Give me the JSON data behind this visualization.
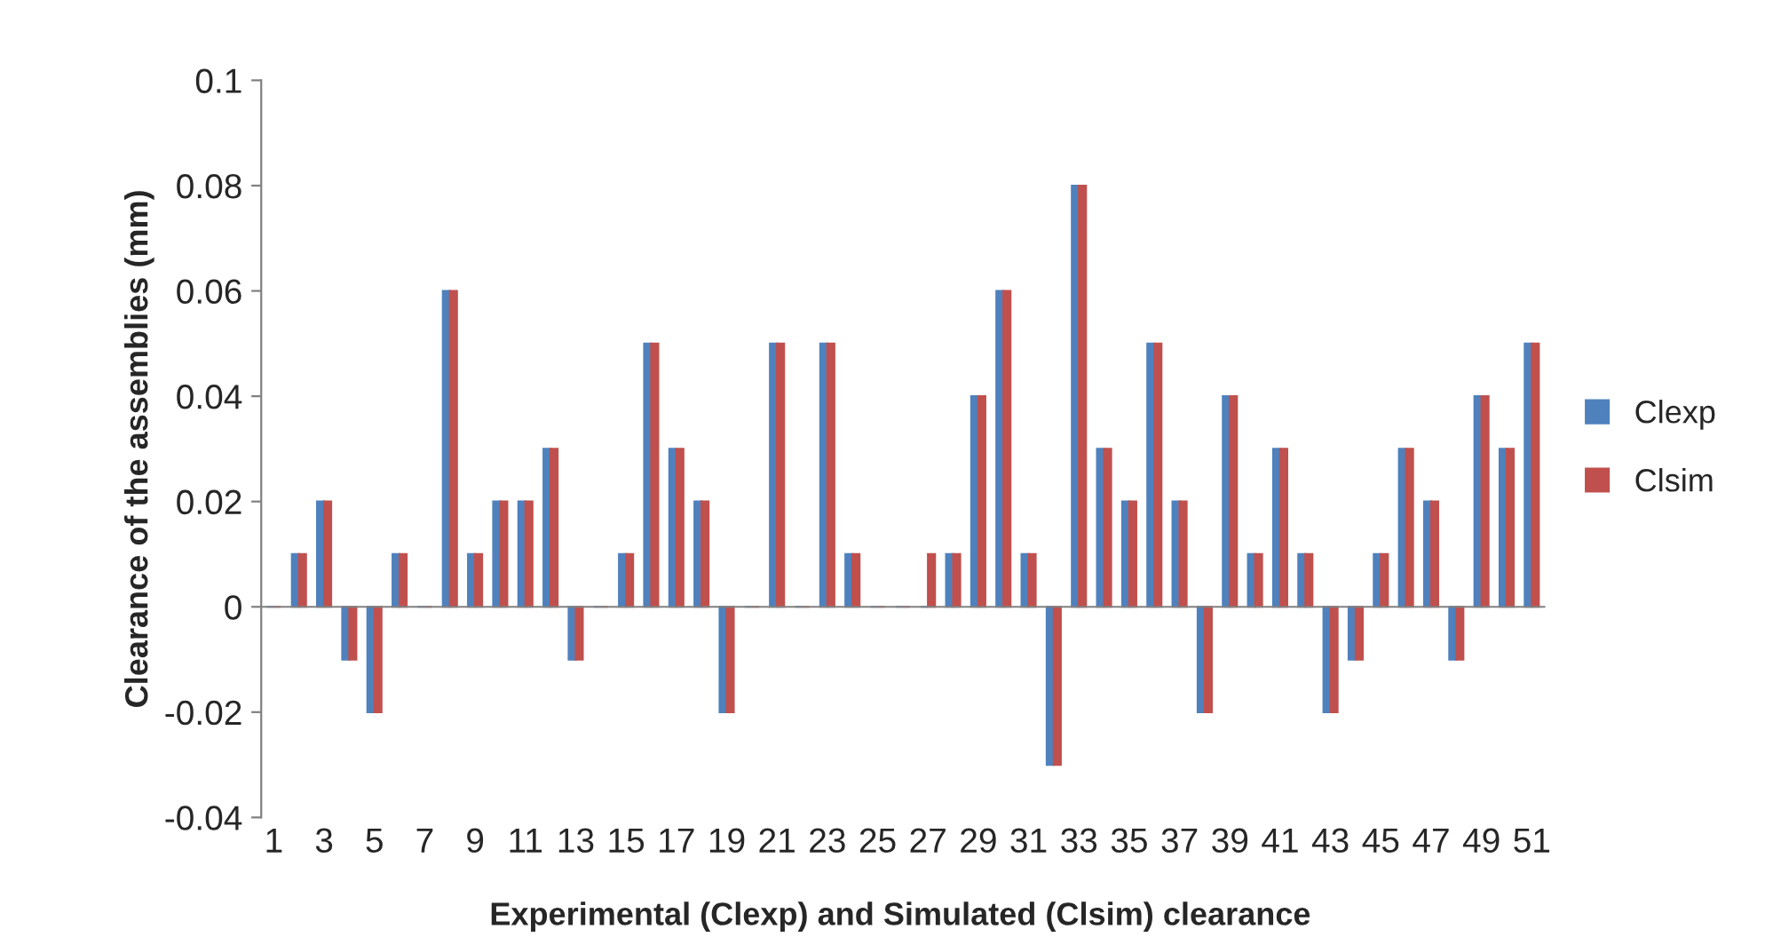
{
  "chart_data": {
    "type": "bar",
    "xlabel": "Experimental (Clexp) and Simulated (Clsim) clearance",
    "ylabel": "Clearance of the assemblies (mm)",
    "categories": [
      "1",
      null,
      "3",
      null,
      "5",
      null,
      "7",
      null,
      "9",
      null,
      "11",
      null,
      "13",
      null,
      "15",
      null,
      "17",
      null,
      "19",
      null,
      "21",
      null,
      "23",
      null,
      "25",
      null,
      "27",
      null,
      "29",
      null,
      "31",
      null,
      "33",
      null,
      "35",
      null,
      "37",
      null,
      "39",
      null,
      "41",
      null,
      "43",
      null,
      "45",
      null,
      "47",
      null,
      "49",
      null,
      "51"
    ],
    "series": [
      {
        "name": "Clexp",
        "color": "#4f81bd",
        "values": [
          0,
          0.01,
          0.02,
          -0.01,
          -0.02,
          0.01,
          0,
          0.06,
          0.01,
          0.02,
          0.02,
          0.03,
          -0.01,
          0,
          0.01,
          0.05,
          0.03,
          0.02,
          -0.02,
          0,
          0.05,
          0,
          0.05,
          0.01,
          0,
          0,
          0,
          0.01,
          0.04,
          0.06,
          0.01,
          -0.03,
          0.08,
          0.03,
          0.02,
          0.05,
          0.02,
          -0.02,
          0.04,
          0.01,
          0.03,
          0.01,
          -0.02,
          -0.01,
          0.01,
          0.03,
          0.02,
          -0.01,
          0.04,
          0.03,
          0.05
        ]
      },
      {
        "name": "Clsim",
        "color": "#c0504d",
        "values": [
          0,
          0.01,
          0.02,
          -0.01,
          -0.02,
          0.01,
          0,
          0.06,
          0.01,
          0.02,
          0.02,
          0.03,
          -0.01,
          0,
          0.01,
          0.05,
          0.03,
          0.02,
          -0.02,
          0,
          0.05,
          0,
          0.05,
          0.01,
          0,
          0,
          0.01,
          0.01,
          0.04,
          0.06,
          0.01,
          -0.03,
          0.08,
          0.03,
          0.02,
          0.05,
          0.02,
          -0.02,
          0.04,
          0.01,
          0.03,
          0.01,
          -0.02,
          -0.01,
          0.01,
          0.03,
          0.02,
          -0.01,
          0.04,
          0.03,
          0.05
        ]
      }
    ],
    "ylim": [
      -0.04,
      0.1
    ],
    "yticks": [
      -0.04,
      -0.02,
      0,
      0.02,
      0.04,
      0.06,
      0.08,
      0.1
    ],
    "legend": "right"
  }
}
